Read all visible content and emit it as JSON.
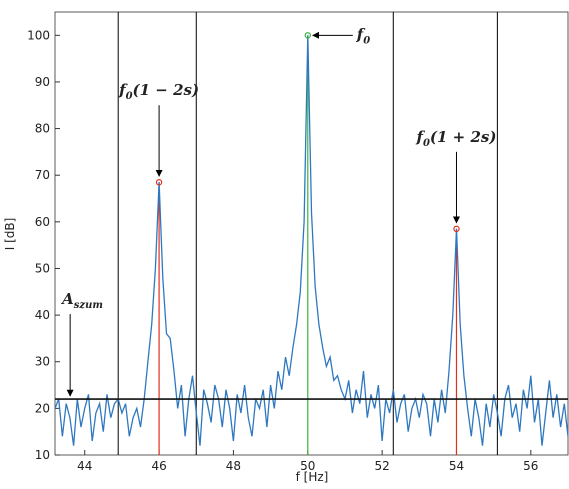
{
  "chart_data": {
    "type": "line",
    "x_label": "f [Hz]",
    "y_label": "I [dB]",
    "xlim": [
      43.2,
      57
    ],
    "ylim": [
      10,
      105
    ],
    "xticks": [
      44,
      46,
      48,
      50,
      52,
      54,
      56
    ],
    "yticks": [
      10,
      20,
      30,
      40,
      50,
      60,
      70,
      80,
      90,
      100
    ],
    "x": [
      43.2,
      43.3,
      43.4,
      43.5,
      43.6,
      43.7,
      43.8,
      43.9,
      44.0,
      44.1,
      44.2,
      44.3,
      44.4,
      44.5,
      44.6,
      44.7,
      44.8,
      44.9,
      45.0,
      45.1,
      45.2,
      45.3,
      45.4,
      45.5,
      45.6,
      45.7,
      45.8,
      45.9,
      46.0,
      46.1,
      46.2,
      46.3,
      46.4,
      46.5,
      46.6,
      46.7,
      46.8,
      46.9,
      47.0,
      47.1,
      47.2,
      47.3,
      47.4,
      47.5,
      47.6,
      47.7,
      47.8,
      47.9,
      48.0,
      48.1,
      48.2,
      48.3,
      48.4,
      48.5,
      48.6,
      48.7,
      48.8,
      48.9,
      49.0,
      49.1,
      49.2,
      49.3,
      49.4,
      49.5,
      49.6,
      49.7,
      49.8,
      49.9,
      50.0,
      50.1,
      50.2,
      50.3,
      50.4,
      50.5,
      50.6,
      50.7,
      50.8,
      50.9,
      51.0,
      51.1,
      51.2,
      51.3,
      51.4,
      51.5,
      51.6,
      51.7,
      51.8,
      51.9,
      52.0,
      52.1,
      52.2,
      52.3,
      52.4,
      52.5,
      52.6,
      52.7,
      52.8,
      52.9,
      53.0,
      53.1,
      53.2,
      53.3,
      53.4,
      53.5,
      53.6,
      53.7,
      53.8,
      53.9,
      54.0,
      54.1,
      54.2,
      54.3,
      54.4,
      54.5,
      54.6,
      54.7,
      54.8,
      54.9,
      55.0,
      55.1,
      55.2,
      55.3,
      55.4,
      55.5,
      55.6,
      55.7,
      55.8,
      55.9,
      56.0,
      56.1,
      56.2,
      56.3,
      56.4,
      56.5,
      56.6,
      56.7,
      56.8,
      56.9,
      57.0
    ],
    "series": [
      {
        "color": "#2f78c0",
        "values": [
          20,
          22,
          14,
          21,
          18,
          12,
          22,
          16,
          20,
          23,
          13,
          19,
          21,
          15,
          23,
          18,
          21,
          22,
          19,
          21,
          14,
          18,
          20,
          16,
          22,
          30,
          38,
          50,
          68.5,
          48,
          36,
          35,
          28,
          20,
          25,
          14,
          22,
          27,
          19,
          12,
          24,
          21,
          17,
          25,
          22,
          16,
          24,
          20,
          13,
          23,
          19,
          25,
          18,
          14,
          22,
          20,
          24,
          16,
          25,
          20,
          28,
          24,
          31,
          27,
          33,
          38,
          45,
          60,
          100,
          62,
          46,
          38,
          33,
          29,
          31,
          26,
          27,
          24,
          22,
          26,
          19,
          24,
          21,
          28,
          18,
          23,
          20,
          25,
          13,
          22,
          19,
          24,
          17,
          21,
          23,
          15,
          20,
          22,
          18,
          23,
          21,
          14,
          22,
          17,
          24,
          19,
          28,
          40,
          58.5,
          38,
          27,
          20,
          14,
          22,
          18,
          12,
          21,
          16,
          23,
          19,
          14,
          22,
          25,
          18,
          21,
          15,
          24,
          20,
          27,
          17,
          22,
          12,
          19,
          26,
          18,
          23,
          16,
          21,
          14
        ]
      }
    ],
    "noise_level": 22,
    "boundaries": [
      44.9,
      47.0,
      52.3,
      55.1
    ],
    "peaks": [
      {
        "x": 46.0,
        "y": 68.5,
        "color": "#e0301e",
        "label": {
          "base": "f",
          "sub": "0",
          "rest": "(1 − 2s)"
        }
      },
      {
        "x": 50.0,
        "y": 100,
        "color": "#3cb43c",
        "label": {
          "base": "f",
          "sub": "0",
          "rest": ""
        }
      },
      {
        "x": 54.0,
        "y": 58.5,
        "color": "#e0301e",
        "label": {
          "base": "f",
          "sub": "0",
          "rest": "(1 + 2s)"
        }
      }
    ],
    "noise_label": {
      "base": "A",
      "sub": "szum"
    }
  }
}
